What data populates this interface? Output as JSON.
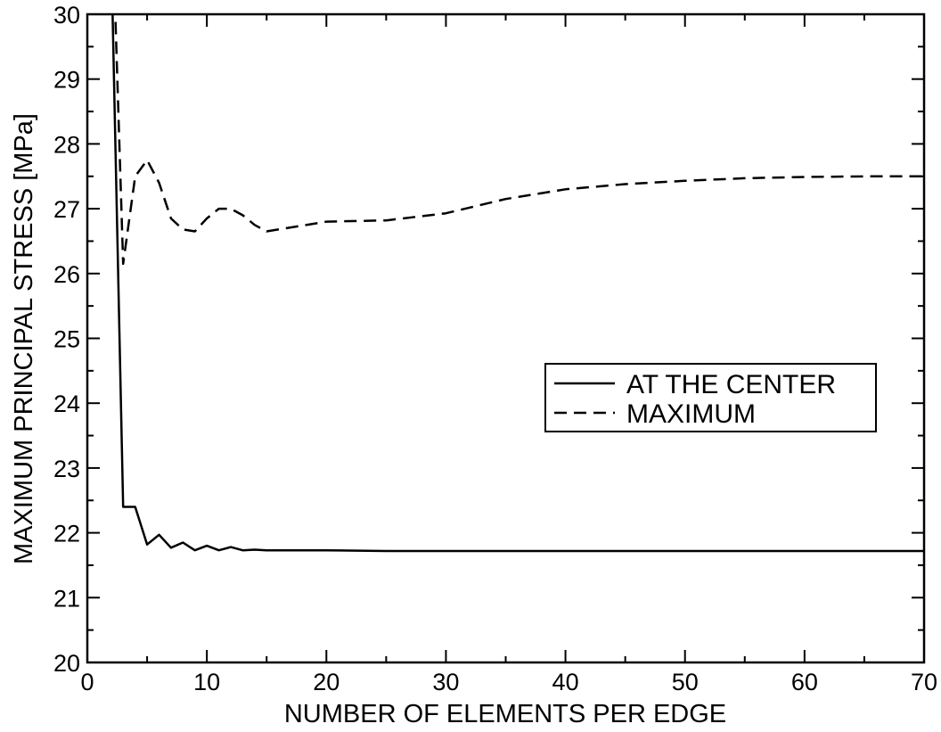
{
  "chart_data": {
    "type": "line",
    "xlabel": "NUMBER OF ELEMENTS PER EDGE",
    "ylabel": "MAXIMUM PRINCIPAL STRESS [MPa]",
    "xlim": [
      0,
      70
    ],
    "ylim": [
      20,
      30
    ],
    "x_ticks": [
      0,
      10,
      20,
      30,
      40,
      50,
      60,
      70
    ],
    "y_ticks": [
      20,
      21,
      22,
      23,
      24,
      25,
      26,
      27,
      28,
      29,
      30
    ],
    "grid": false,
    "legend_position": "center-right",
    "series": [
      {
        "name": "AT THE CENTER",
        "style": "solid",
        "color": "#000000",
        "x": [
          2,
          3,
          4,
          5,
          6,
          7,
          8,
          9,
          10,
          11,
          12,
          13,
          14,
          15,
          20,
          25,
          30,
          40,
          50,
          60,
          70
        ],
        "y": [
          31,
          22.4,
          22.4,
          21.82,
          21.97,
          21.77,
          21.85,
          21.73,
          21.8,
          21.73,
          21.78,
          21.73,
          21.74,
          21.73,
          21.73,
          21.72,
          21.72,
          21.72,
          21.72,
          21.72,
          21.72
        ]
      },
      {
        "name": "MAXIMUM",
        "style": "dashed",
        "color": "#000000",
        "x": [
          2,
          3,
          4,
          5,
          6,
          7,
          8,
          9,
          10,
          11,
          12,
          13,
          14,
          15,
          20,
          25,
          30,
          35,
          40,
          45,
          50,
          55,
          60,
          65,
          70
        ],
        "y": [
          32,
          26.15,
          27.5,
          27.75,
          27.4,
          26.85,
          26.68,
          26.65,
          26.85,
          27.0,
          27.0,
          26.9,
          26.75,
          26.65,
          26.8,
          26.82,
          26.93,
          27.15,
          27.3,
          27.38,
          27.43,
          27.47,
          27.49,
          27.5,
          27.5
        ]
      }
    ]
  }
}
